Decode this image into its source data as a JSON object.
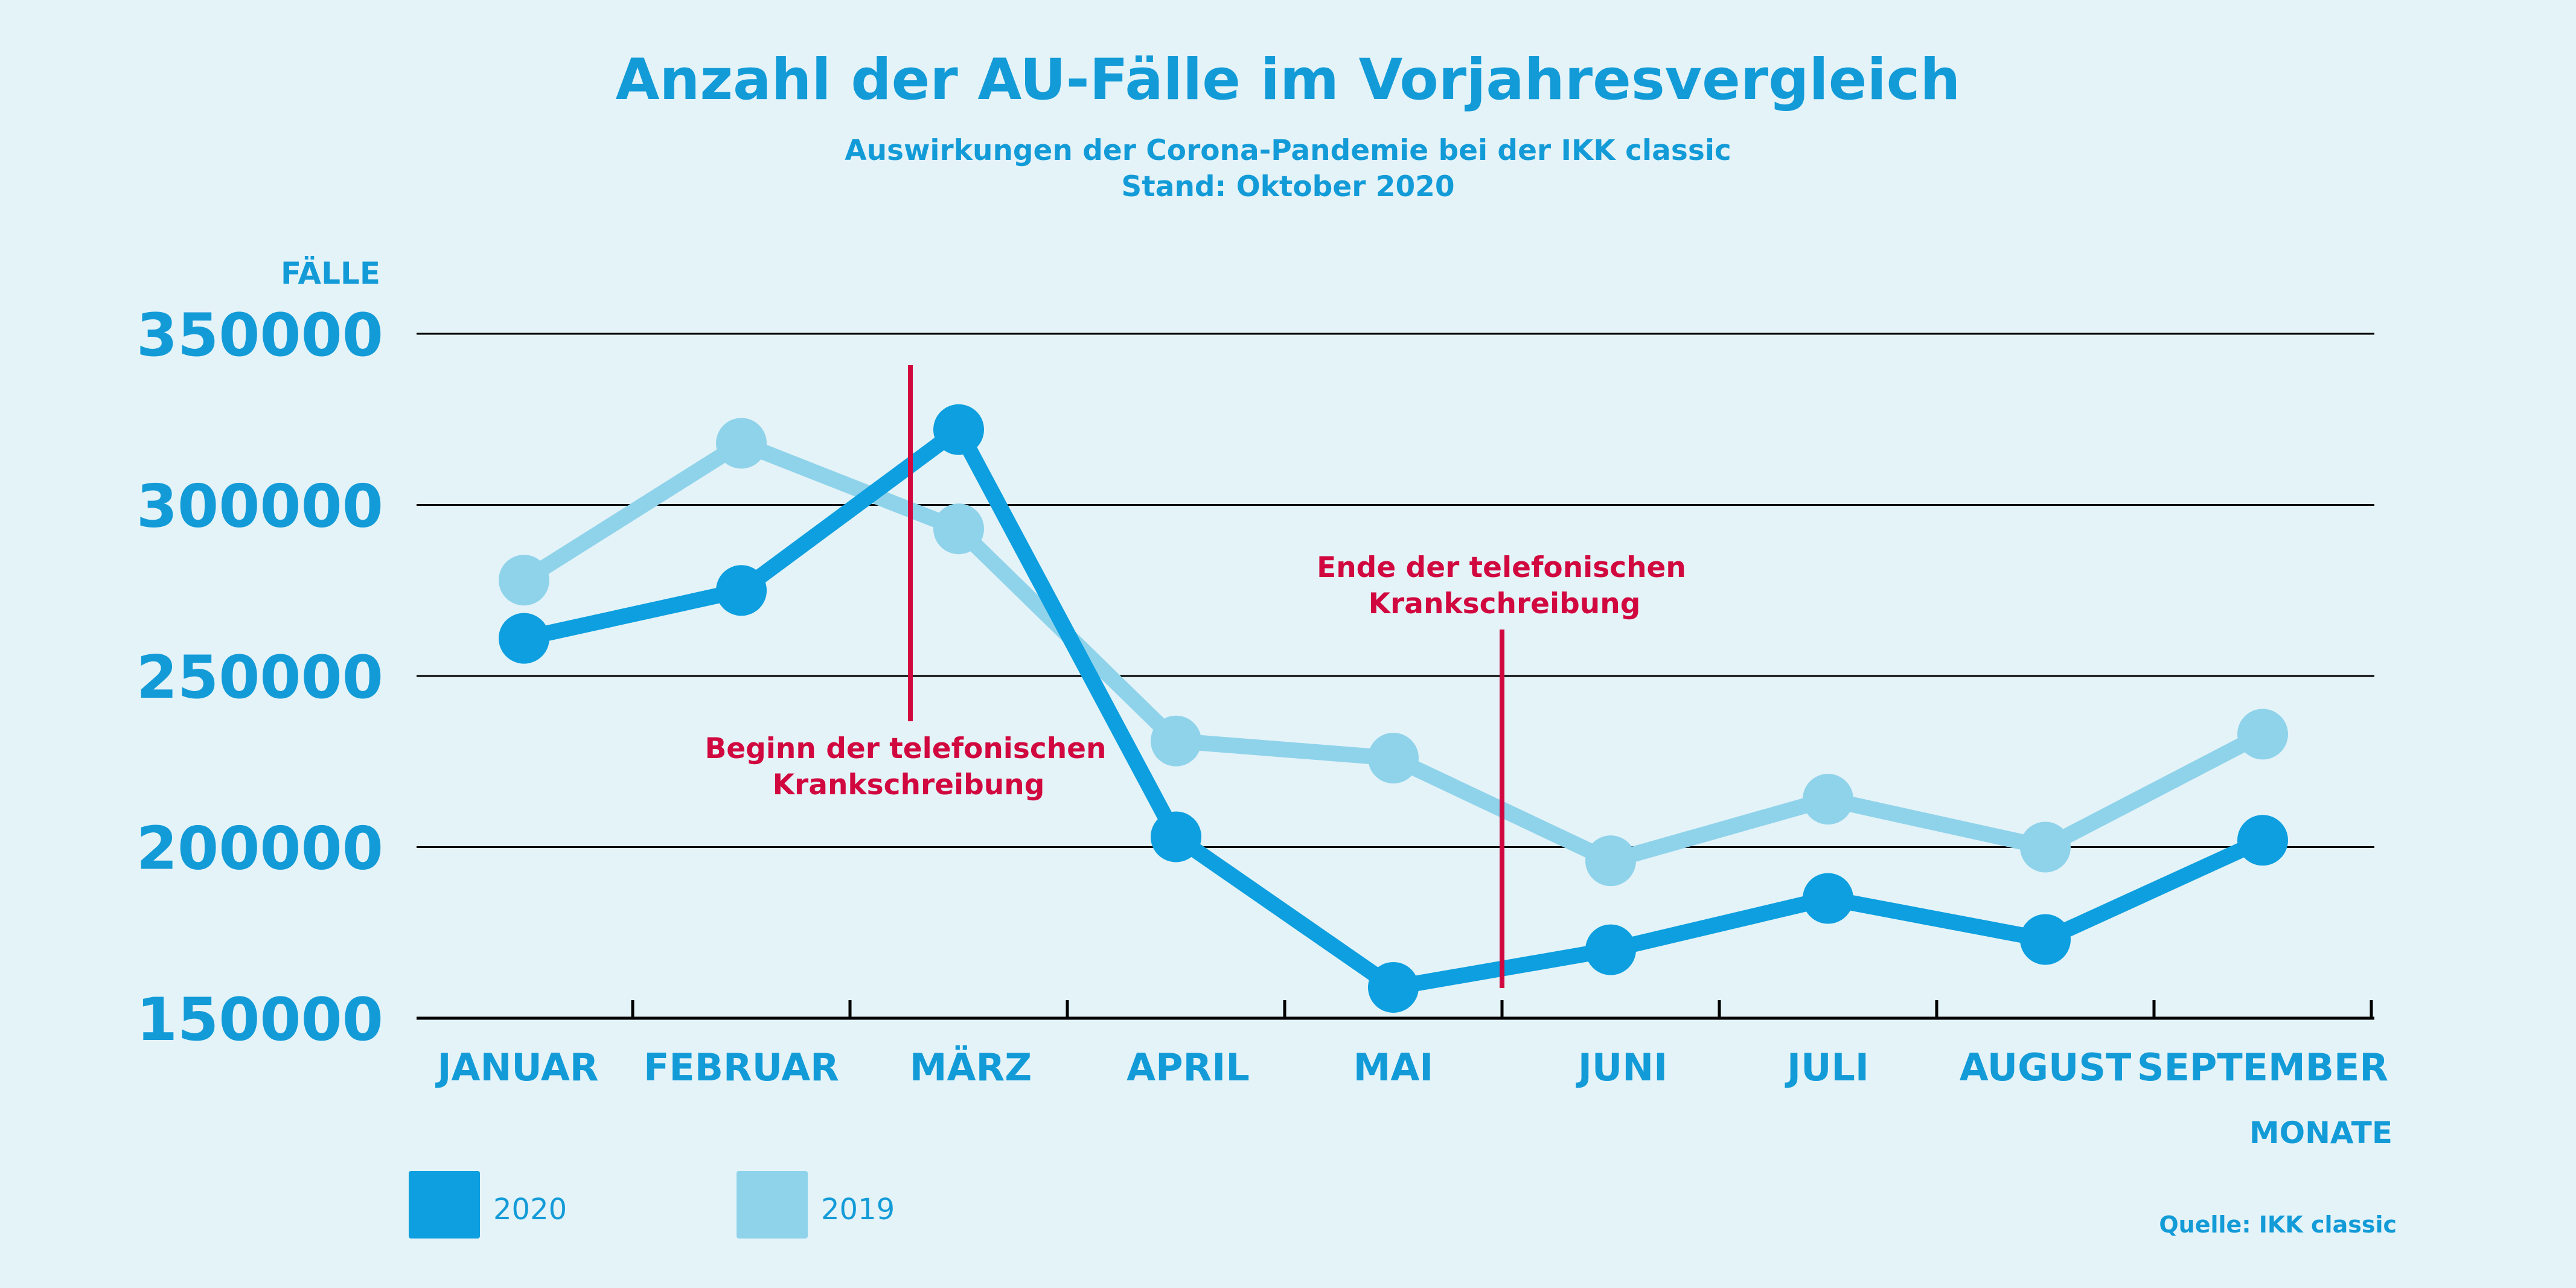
{
  "title": "Anzahl der AU-Fälle im Vorjahresvergleich",
  "subtitle_line1": "Auswirkungen der Corona-Pandemie bei der IKK classic",
  "subtitle_line2": "Stand: Oktober 2020",
  "source": "Quelle: IKK classic",
  "colors": {
    "background": "#e4f3f8",
    "series_2020": "#0d9fdf",
    "series_2019": "#8fd3eb",
    "annotation": "#d1083f",
    "grid": "#000000",
    "text": "#139bd8"
  },
  "legend": [
    {
      "label": "2020",
      "color": "#0d9fdf"
    },
    {
      "label": "2019",
      "color": "#8fd3eb"
    }
  ],
  "chart_data": {
    "type": "line",
    "ylabel": "FÄLLE",
    "xlabel": "MONATE",
    "categories": [
      "JANUAR",
      "FEBRUAR",
      "MÄRZ",
      "APRIL",
      "MAI",
      "JUNI",
      "JULI",
      "AUGUST",
      "SEPTEMBER"
    ],
    "ylim": [
      150000,
      350000
    ],
    "yticks": [
      "150000",
      "200000",
      "250000",
      "300000",
      "350000"
    ],
    "yticks_values": [
      150000,
      200000,
      250000,
      300000,
      350000
    ],
    "grid": true,
    "series": [
      {
        "name": "2020",
        "values": [
          261000,
          275000,
          322000,
          203000,
          159000,
          170000,
          185000,
          173000,
          202000
        ]
      },
      {
        "name": "2019",
        "values": [
          278000,
          318000,
          293000,
          231000,
          226000,
          196000,
          214000,
          200000,
          233000
        ]
      }
    ],
    "annotations": [
      {
        "text_line1": "Beginn der telefonischen",
        "text_line2": "Krankschreibung",
        "x_between": [
          1,
          2
        ]
      },
      {
        "text_line1": "Ende der telefonischen",
        "text_line2": "Krankschreibung",
        "x_between": [
          4,
          5
        ]
      }
    ]
  }
}
